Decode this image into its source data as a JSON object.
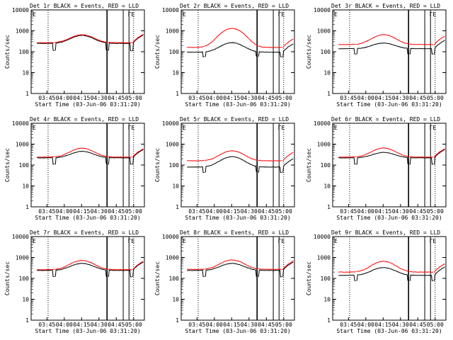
{
  "figure": {
    "xlabel": "Start Time (03-Jun-06 03:31:20)",
    "ylabel": "Counts/sec",
    "legend_text": "BLACK = Events, RED = LLD",
    "series_colors": {
      "events": "#000000",
      "lld": "#ff0000"
    },
    "y_scale": "log",
    "y_ticks": [
      "1",
      "10",
      "100",
      "1000",
      "10000"
    ],
    "x_tick_labels": [
      "03:45",
      "04:00",
      "04:15",
      "04:30",
      "04:45",
      "05:00"
    ],
    "annotations": {
      "corner_marks": "E",
      "corner_marks_right": "ΓE"
    }
  },
  "chart_data": [
    {
      "type": "line",
      "title": "Det 1r BLACK = Events, RED = LLD",
      "detector": "1r",
      "xlabel": "Start Time (03-Jun-06 03:31:20)",
      "ylabel": "Counts/sec",
      "ylim": [
        1,
        10000
      ],
      "y_scale": "log",
      "x_minutes_since_start_ticks": [
        "03:45",
        "04:00",
        "04:15",
        "04:30",
        "04:45",
        "05:00"
      ],
      "series": [
        {
          "name": "Events",
          "color": "#000000",
          "base": 250,
          "peak": 600,
          "dip_mult": 0.45
        },
        {
          "name": "LLD",
          "color": "#ff0000",
          "base": 270,
          "peak": 650,
          "dip_mult": 1.0
        }
      ],
      "vertical_lines": {
        "dotted": [
          "03:46",
          "05:00"
        ],
        "solid": [
          "04:37",
          "04:51",
          "04:56"
        ]
      }
    },
    {
      "type": "line",
      "title": "Det 2r BLACK = Events, RED = LLD",
      "detector": "2r",
      "xlabel": "Start Time (03-Jun-06 03:31:20)",
      "ylabel": "Counts/sec",
      "ylim": [
        1,
        10000
      ],
      "y_scale": "log",
      "series": [
        {
          "name": "Events",
          "color": "#000000",
          "base": 95,
          "peak": 270,
          "dip_mult": 0.6
        },
        {
          "name": "LLD",
          "color": "#ff0000",
          "base": 160,
          "peak": 1300,
          "dip_mult": 1.0
        }
      ],
      "vertical_lines": {
        "dotted": [
          "03:46",
          "05:00"
        ],
        "solid": [
          "04:37",
          "04:51",
          "04:56"
        ]
      }
    },
    {
      "type": "line",
      "title": "Det 3r BLACK = Events, RED = LLD",
      "detector": "3r",
      "xlabel": "Start Time (03-Jun-06 03:31:20)",
      "ylabel": "Counts/sec",
      "ylim": [
        1,
        10000
      ],
      "y_scale": "log",
      "series": [
        {
          "name": "Events",
          "color": "#000000",
          "base": 140,
          "peak": 260,
          "dip_mult": 0.55
        },
        {
          "name": "LLD",
          "color": "#ff0000",
          "base": 220,
          "peak": 650,
          "dip_mult": 1.0
        }
      ],
      "vertical_lines": {
        "dotted": [
          "03:46",
          "05:00"
        ],
        "solid": [
          "04:37",
          "04:51",
          "04:56"
        ]
      }
    },
    {
      "type": "line",
      "title": "Det 4r BLACK = Events, RED = LLD",
      "detector": "4r",
      "xlabel": "Start Time (03-Jun-06 03:31:20)",
      "ylabel": "Counts/sec",
      "ylim": [
        1,
        10000
      ],
      "y_scale": "log",
      "series": [
        {
          "name": "Events",
          "color": "#000000",
          "base": 220,
          "peak": 450,
          "dip_mult": 0.5
        },
        {
          "name": "LLD",
          "color": "#ff0000",
          "base": 240,
          "peak": 640,
          "dip_mult": 1.0
        }
      ],
      "vertical_lines": {
        "dotted": [
          "03:46",
          "05:00"
        ],
        "solid": [
          "04:37",
          "04:51",
          "04:56"
        ]
      }
    },
    {
      "type": "line",
      "title": "Det 5r BLACK = Events, RED = LLD",
      "detector": "5r",
      "xlabel": "Start Time (03-Jun-06 03:31:20)",
      "ylabel": "Counts/sec",
      "ylim": [
        1,
        10000
      ],
      "y_scale": "log",
      "series": [
        {
          "name": "Events",
          "color": "#000000",
          "base": 80,
          "peak": 250,
          "dip_mult": 0.55
        },
        {
          "name": "LLD",
          "color": "#ff0000",
          "base": 160,
          "peak": 480,
          "dip_mult": 1.0
        }
      ],
      "vertical_lines": {
        "dotted": [
          "03:46",
          "05:00"
        ],
        "solid": [
          "04:37",
          "04:51",
          "04:56"
        ]
      }
    },
    {
      "type": "line",
      "title": "Det 6r BLACK = Events, RED = LLD",
      "detector": "6r",
      "xlabel": "Start Time (03-Jun-06 03:31:20)",
      "ylabel": "Counts/sec",
      "ylim": [
        1,
        10000
      ],
      "y_scale": "log",
      "series": [
        {
          "name": "Events",
          "color": "#000000",
          "base": 220,
          "peak": 400,
          "dip_mult": 0.5
        },
        {
          "name": "LLD",
          "color": "#ff0000",
          "base": 240,
          "peak": 650,
          "dip_mult": 1.0
        }
      ],
      "vertical_lines": {
        "dotted": [
          "03:46",
          "05:00"
        ],
        "solid": [
          "04:37",
          "04:51",
          "04:56"
        ]
      }
    },
    {
      "type": "line",
      "title": "Det 7r BLACK = Events, RED = LLD",
      "detector": "7r",
      "xlabel": "Start Time (03-Jun-06 03:31:20)",
      "ylabel": "Counts/sec",
      "ylim": [
        1,
        10000
      ],
      "y_scale": "log",
      "series": [
        {
          "name": "Events",
          "color": "#000000",
          "base": 240,
          "peak": 520,
          "dip_mult": 0.5
        },
        {
          "name": "LLD",
          "color": "#ff0000",
          "base": 260,
          "peak": 720,
          "dip_mult": 1.0
        }
      ],
      "vertical_lines": {
        "dotted": [
          "03:46",
          "05:00"
        ],
        "solid": [
          "04:37",
          "04:51",
          "04:56"
        ]
      }
    },
    {
      "type": "line",
      "title": "Det 8r BLACK = Events, RED = LLD",
      "detector": "8r",
      "xlabel": "Start Time (03-Jun-06 03:31:20)",
      "ylabel": "Counts/sec",
      "ylim": [
        1,
        10000
      ],
      "y_scale": "log",
      "series": [
        {
          "name": "Events",
          "color": "#000000",
          "base": 240,
          "peak": 520,
          "dip_mult": 0.5
        },
        {
          "name": "LLD",
          "color": "#ff0000",
          "base": 270,
          "peak": 760,
          "dip_mult": 1.0
        }
      ],
      "vertical_lines": {
        "dotted": [
          "03:46",
          "05:00"
        ],
        "solid": [
          "04:37",
          "04:51",
          "04:56"
        ]
      }
    },
    {
      "type": "line",
      "title": "Det 9r BLACK = Events, RED = LLD",
      "detector": "9r",
      "xlabel": "Start Time (03-Jun-06 03:31:20)",
      "ylabel": "Counts/sec",
      "ylim": [
        1,
        10000
      ],
      "y_scale": "log",
      "series": [
        {
          "name": "Events",
          "color": "#000000",
          "base": 140,
          "peak": 330,
          "dip_mult": 0.55
        },
        {
          "name": "LLD",
          "color": "#ff0000",
          "base": 200,
          "peak": 650,
          "dip_mult": 1.0
        }
      ],
      "vertical_lines": {
        "dotted": [
          "03:46",
          "05:00"
        ],
        "solid": [
          "04:37",
          "04:51",
          "04:56"
        ]
      }
    }
  ]
}
